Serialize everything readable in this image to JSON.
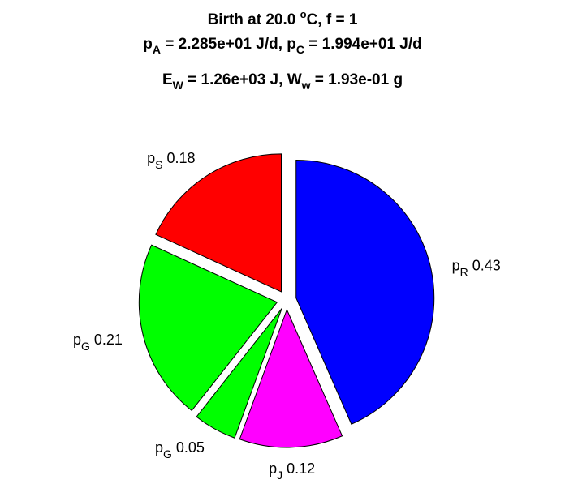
{
  "header": {
    "line1": {
      "a": "Birth at 20.0 ",
      "sup": "o",
      "b": "C, f = 1"
    },
    "line2": {
      "p1": "p",
      "s1": "A",
      "v1": " = 2.285e+01 J/d, ",
      "p2": "p",
      "s2": "C",
      "v2": " = 1.994e+01 J/d"
    },
    "line3": {
      "p1": "E",
      "s1": "W",
      "v1": " = 1.26e+03 J, ",
      "p2": "W",
      "s2": "w",
      "v2": " = 1.93e-01 g"
    }
  },
  "chart_data": {
    "type": "pie",
    "slices": [
      {
        "base": "p",
        "sub": "R",
        "value": 0.43,
        "color": "#0000ff"
      },
      {
        "base": "p",
        "sub": "J",
        "value": 0.12,
        "color": "#ff00ff"
      },
      {
        "base": "p",
        "sub": "G",
        "value": 0.05,
        "color": "#00ff00"
      },
      {
        "base": "p",
        "sub": "G",
        "value": 0.21,
        "color": "#00ff00"
      },
      {
        "base": "p",
        "sub": "S",
        "value": 0.18,
        "color": "#ff0000"
      }
    ]
  }
}
